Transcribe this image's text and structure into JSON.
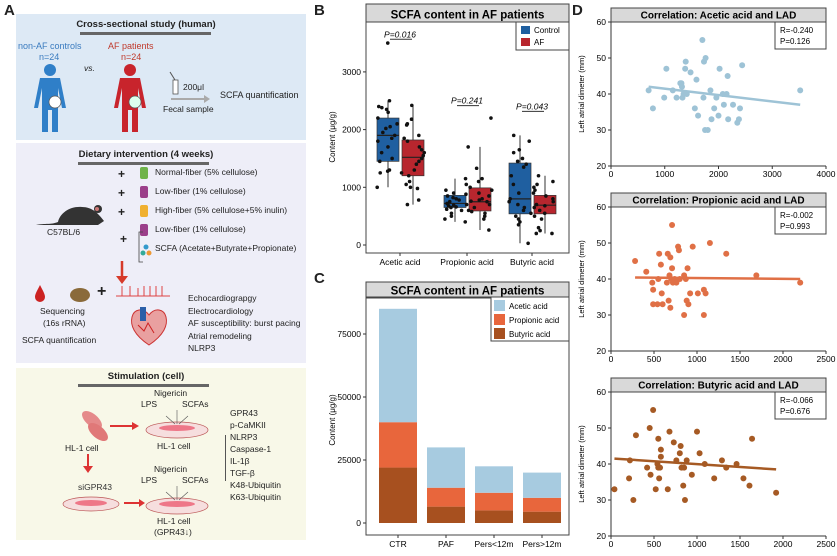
{
  "panel_labels": {
    "a": "A",
    "b": "B",
    "c": "C",
    "d": "D"
  },
  "colors": {
    "control": "#1f5fa0",
    "af": "#b8262e",
    "acetic": "#a7cbe0",
    "propionic": "#e8663c",
    "butyric": "#a7501f",
    "acetic_scatter": "#9ec3d6",
    "propionic_scatter": "#e07046",
    "butyric_scatter": "#a65a24",
    "human_blue": "#2f7fc8",
    "human_red": "#c8242c"
  },
  "panel_a": {
    "cross": {
      "title": "Cross-sectional study (human)",
      "controls": "non-AF controls",
      "controls_n": "n=24",
      "vs": "vs.",
      "patients": "AF patients",
      "patients_n": "n=24",
      "volume": "200μl",
      "sample": "Fecal sample",
      "quant": "SCFA quantification",
      "icons": [
        "human-figure-control",
        "human-figure-af",
        "pipette-tube",
        "arrow-right"
      ]
    },
    "diet": {
      "title": "Dietary intervention (4 weeks)",
      "mouse": "C57BL/6",
      "plus": "+",
      "items": [
        "Normal-fiber (5%  cellulose)",
        "Low-fiber (1%  cellulose)",
        "High-fiber (5%  cellulose+5% inulin)",
        "Low-fiber (1%  cellulose)",
        "SCFA (Acetate+Butyrate+Propionate)"
      ],
      "seq1": "Sequencing",
      "seq2": "(16s rRNA)",
      "seq_quant": "SCFA quantification",
      "outcomes": [
        "Echocardiograpgy",
        "Electrocardiology",
        "AF susceptibility: burst pacing",
        "Atrial remodeling",
        "NLRP3"
      ]
    },
    "cell": {
      "title": "Stimulation (cell)",
      "nigericin": "Nigericin",
      "lps": "LPS",
      "scfas": "SCFAs",
      "hl1": "HL-1 cell",
      "sigpr": "siGPR43",
      "hl1_kd": "HL-1 cell",
      "hl1_kd2": "(GPR43↓)",
      "readouts": [
        "GPR43",
        "p-CaMKII",
        "NLRP3",
        "Caspase-1",
        "IL-1β",
        "TGF-β",
        "K48-Ubiquitin",
        "K63-Ubiquitin"
      ]
    }
  },
  "chart_data": [
    {
      "type": "box",
      "title": "SCFA content in AF patients",
      "xlabel": "",
      "ylabel": "Content (μg/g)",
      "ylim": [
        -150,
        3900
      ],
      "yticks": [
        0,
        1000,
        2000,
        3000
      ],
      "categories": [
        "Acetic acid",
        "Propionic acid",
        "Butyric acid"
      ],
      "legend": [
        "Control",
        "AF"
      ],
      "legend_position": "top-right",
      "pvalues": [
        {
          "label": "P=0.016",
          "y": 3600
        },
        {
          "label": "P=0.241",
          "y": 2450
        },
        {
          "label": "P=0.043",
          "y": 2350
        }
      ],
      "series": [
        {
          "name": "Control",
          "boxes": [
            {
              "q1": 1450,
              "median": 1900,
              "q3": 2200,
              "min": 1000,
              "max": 2500
            },
            {
              "q1": 650,
              "median": 720,
              "q3": 860,
              "min": 400,
              "max": 1150
            },
            {
              "q1": 540,
              "median": 800,
              "q3": 1420,
              "min": 30,
              "max": 1900
            }
          ],
          "points": [
            [
              3500,
              2500,
              2400,
              2380,
              2350,
              2300,
              2200,
              2100,
              2050,
              2020,
              1950,
              1900,
              1850,
              1800,
              1700,
              1600,
              1500,
              1450,
              1300,
              1280,
              1250,
              1000
            ],
            [
              1150,
              1050,
              950,
              900,
              880,
              850,
              820,
              800,
              780,
              750,
              720,
              700,
              690,
              680,
              660,
              650,
              620,
              600,
              550,
              500,
              450,
              400
            ],
            [
              1900,
              1800,
              1650,
              1600,
              1500,
              1450,
              1400,
              1350,
              1200,
              1050,
              900,
              800,
              750,
              700,
              650,
              600,
              550,
              500,
              450,
              400,
              350,
              30
            ]
          ]
        },
        {
          "name": "AF",
          "boxes": [
            {
              "q1": 1200,
              "median": 1520,
              "q3": 1820,
              "min": 700,
              "max": 2420
            },
            {
              "q1": 590,
              "median": 750,
              "q3": 990,
              "min": 260,
              "max": 1700
            },
            {
              "q1": 540,
              "median": 690,
              "q3": 860,
              "min": 200,
              "max": 1200
            }
          ],
          "points": [
            [
              2420,
              2180,
              2100,
              2080,
              1900,
              1850,
              1800,
              1700,
              1650,
              1600,
              1550,
              1500,
              1450,
              1400,
              1300,
              1250,
              1200,
              1100,
              1050,
              1000,
              980,
              780,
              700
            ],
            [
              2200,
              1700,
              1330,
              1150,
              1100,
              1000,
              950,
              900,
              850,
              800,
              780,
              760,
              750,
              700,
              650,
              600,
              580,
              550,
              500,
              450,
              260
            ],
            [
              1200,
              1100,
              1050,
              1000,
              950,
              900,
              850,
              800,
              750,
              700,
              680,
              650,
              600,
              550,
              500,
              450,
              300,
              250,
              200,
              200
            ]
          ]
        }
      ]
    },
    {
      "type": "bar",
      "stacked": true,
      "title": "SCFA content in AF patients",
      "xlabel": "",
      "ylabel": "Content (μg/g)",
      "ylim": [
        -5000,
        90000
      ],
      "yticks": [
        0,
        25000,
        50000,
        75000
      ],
      "categories": [
        "CTR",
        "PAF",
        "Pers<12m",
        "Pers>12m"
      ],
      "legend_position": "top-right",
      "series": [
        {
          "name": "Butyric acid",
          "values": [
            22000,
            6500,
            5000,
            4500
          ]
        },
        {
          "name": "Propionic acid",
          "values": [
            18000,
            7500,
            7000,
            5500
          ]
        },
        {
          "name": "Acetic acid",
          "values": [
            45000,
            16000,
            10500,
            10000
          ]
        }
      ],
      "legend": [
        "Acetic acid",
        "Propionic acid",
        "Butyric acid"
      ]
    },
    {
      "type": "scatter",
      "title": "Correlation: Acetic acid and LAD",
      "ylabel": "Left atrial dimeter (mm)",
      "xlim": [
        0,
        4000
      ],
      "ylim": [
        20,
        60
      ],
      "xticks": [
        0,
        1000,
        2000,
        3000,
        4000
      ],
      "yticks": [
        20,
        30,
        40,
        50,
        60
      ],
      "R": "R=-0.240",
      "P": "P=0.126",
      "fit": [
        [
          700,
          42
        ],
        [
          3520,
          37
        ]
      ],
      "points": [
        [
          700,
          41
        ],
        [
          780,
          36
        ],
        [
          990,
          39
        ],
        [
          1030,
          47
        ],
        [
          1150,
          41
        ],
        [
          1220,
          39
        ],
        [
          1290,
          43
        ],
        [
          1310,
          43
        ],
        [
          1320,
          42
        ],
        [
          1330,
          39
        ],
        [
          1350,
          40
        ],
        [
          1380,
          47
        ],
        [
          1390,
          49
        ],
        [
          1410,
          40
        ],
        [
          1480,
          46
        ],
        [
          1560,
          36
        ],
        [
          1590,
          44
        ],
        [
          1620,
          34
        ],
        [
          1700,
          55
        ],
        [
          1720,
          39
        ],
        [
          1730,
          49
        ],
        [
          1750,
          30
        ],
        [
          1760,
          50
        ],
        [
          1800,
          30
        ],
        [
          1850,
          41
        ],
        [
          1870,
          33
        ],
        [
          1920,
          36
        ],
        [
          1960,
          39
        ],
        [
          2000,
          34
        ],
        [
          2020,
          47
        ],
        [
          2080,
          40
        ],
        [
          2100,
          37
        ],
        [
          2150,
          40
        ],
        [
          2170,
          45
        ],
        [
          2180,
          33
        ],
        [
          2270,
          37
        ],
        [
          2350,
          32
        ],
        [
          2380,
          33
        ],
        [
          2400,
          36
        ],
        [
          2440,
          48
        ],
        [
          3520,
          41
        ]
      ]
    },
    {
      "type": "scatter",
      "title": "Correlation: Propionic acid and LAD",
      "ylabel": "Left atrial dimeter (mm)",
      "xlim": [
        0,
        2500
      ],
      "ylim": [
        20,
        60
      ],
      "xticks": [
        0,
        500,
        1000,
        1500,
        2000,
        2500
      ],
      "yticks": [
        20,
        30,
        40,
        50,
        60
      ],
      "R": "R=-0.002",
      "P": "P=0.993",
      "fit": [
        [
          280,
          40.4
        ],
        [
          2200,
          40.0
        ]
      ],
      "points": [
        [
          280,
          45
        ],
        [
          410,
          42
        ],
        [
          480,
          39
        ],
        [
          490,
          37
        ],
        [
          490,
          33
        ],
        [
          540,
          33
        ],
        [
          550,
          40
        ],
        [
          560,
          47
        ],
        [
          580,
          44
        ],
        [
          590,
          36
        ],
        [
          600,
          33
        ],
        [
          650,
          39
        ],
        [
          660,
          47
        ],
        [
          670,
          34
        ],
        [
          680,
          41
        ],
        [
          690,
          46
        ],
        [
          690,
          32
        ],
        [
          700,
          40
        ],
        [
          710,
          55
        ],
        [
          710,
          43
        ],
        [
          720,
          39
        ],
        [
          740,
          40
        ],
        [
          760,
          39
        ],
        [
          780,
          49
        ],
        [
          790,
          48
        ],
        [
          800,
          40
        ],
        [
          850,
          41
        ],
        [
          850,
          30
        ],
        [
          870,
          40
        ],
        [
          880,
          34
        ],
        [
          890,
          43
        ],
        [
          900,
          33
        ],
        [
          920,
          36
        ],
        [
          950,
          49
        ],
        [
          1010,
          36
        ],
        [
          1080,
          37
        ],
        [
          1080,
          30
        ],
        [
          1100,
          36
        ],
        [
          1150,
          50
        ],
        [
          1340,
          47
        ],
        [
          1690,
          41
        ],
        [
          2200,
          39
        ]
      ]
    },
    {
      "type": "scatter",
      "title": "Correlation: Butyric acid and LAD",
      "ylabel": "Left atrial dimeter (mm)",
      "xlim": [
        0,
        2500
      ],
      "ylim": [
        20,
        60
      ],
      "xticks": [
        0,
        500,
        1000,
        1500,
        2000,
        2500
      ],
      "yticks": [
        20,
        30,
        40,
        50,
        60
      ],
      "R": "R=-0.066",
      "P": "P=0.676",
      "fit": [
        [
          40,
          41.5
        ],
        [
          1920,
          38.5
        ]
      ],
      "points": [
        [
          40,
          33
        ],
        [
          210,
          36
        ],
        [
          220,
          41
        ],
        [
          260,
          30
        ],
        [
          290,
          48
        ],
        [
          420,
          39
        ],
        [
          450,
          50
        ],
        [
          460,
          37
        ],
        [
          490,
          55
        ],
        [
          520,
          33
        ],
        [
          540,
          40
        ],
        [
          550,
          47
        ],
        [
          550,
          39
        ],
        [
          560,
          36
        ],
        [
          570,
          39
        ],
        [
          580,
          44
        ],
        [
          580,
          42
        ],
        [
          660,
          33
        ],
        [
          680,
          49
        ],
        [
          730,
          46
        ],
        [
          760,
          41
        ],
        [
          800,
          43
        ],
        [
          810,
          45
        ],
        [
          820,
          39
        ],
        [
          840,
          34
        ],
        [
          850,
          39
        ],
        [
          860,
          30
        ],
        [
          880,
          41
        ],
        [
          940,
          37
        ],
        [
          1000,
          49
        ],
        [
          1030,
          43
        ],
        [
          1090,
          40
        ],
        [
          1200,
          36
        ],
        [
          1290,
          41
        ],
        [
          1340,
          39
        ],
        [
          1460,
          40
        ],
        [
          1540,
          36
        ],
        [
          1610,
          34
        ],
        [
          1640,
          47
        ],
        [
          1920,
          32
        ]
      ]
    }
  ]
}
